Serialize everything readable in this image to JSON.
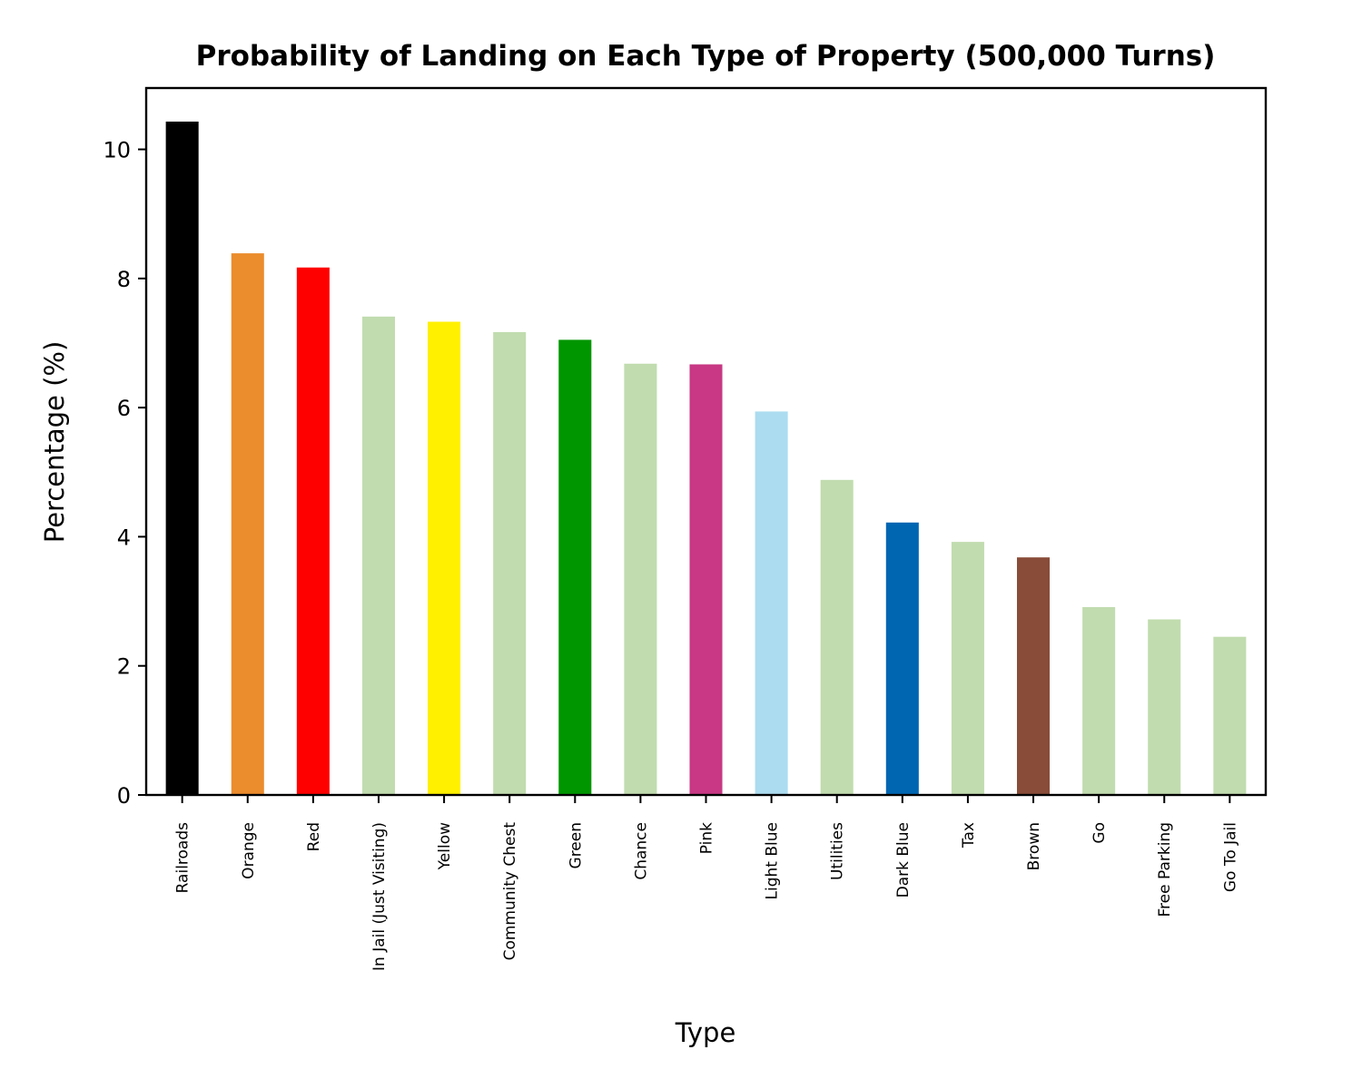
{
  "chart_data": {
    "type": "bar",
    "title": "Probability of Landing on Each Type of Property (500,000 Turns)",
    "xlabel": "Type",
    "ylabel": "Percentage (%)",
    "ylim": [
      0,
      10.95
    ],
    "yticks": [
      "0",
      "2",
      "4",
      "6",
      "8",
      "10"
    ],
    "grid": false,
    "categories": [
      "Railroads",
      "Orange",
      "Red",
      "In Jail (Just Visiting)",
      "Yellow",
      "Community Chest",
      "Green",
      "Chance",
      "Pink",
      "Light Blue",
      "Utilities",
      "Dark Blue",
      "Tax",
      "Brown",
      "Go",
      "Free Parking",
      "Go To Jail"
    ],
    "values": [
      10.43,
      8.39,
      8.17,
      7.41,
      7.33,
      7.17,
      7.05,
      6.68,
      6.67,
      5.94,
      4.88,
      4.22,
      3.92,
      3.68,
      2.91,
      2.72,
      2.45
    ],
    "colors": [
      "#000000",
      "#eb8c2d",
      "#ff0000",
      "#c1dcaf",
      "#fff000",
      "#c1dcaf",
      "#009600",
      "#c1dcaf",
      "#c83884",
      "#acdcf0",
      "#c1dcaf",
      "#0066b2",
      "#c1dcaf",
      "#884c38",
      "#c1dcaf",
      "#c1dcaf",
      "#c1dcaf"
    ]
  }
}
